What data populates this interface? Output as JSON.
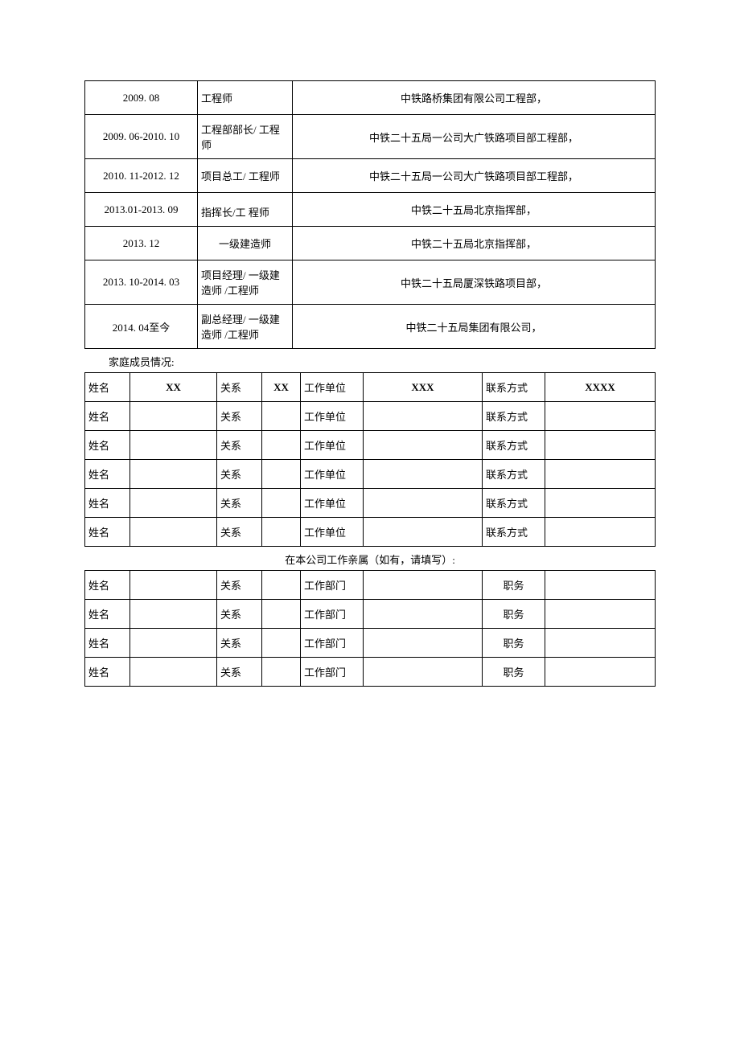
{
  "work_history": [
    {
      "date": "2009. 08",
      "role": "工程师",
      "place": "中铁路桥集团有限公司工程部，"
    },
    {
      "date": "2009. 06-2010. 10",
      "role": "工程部部长/ 工程师",
      "place": "中铁二十五局一公司大广铁路项目部工程部，"
    },
    {
      "date": "2010. 11-2012. 12",
      "role": "项目总工/ 工程师",
      "place": "中铁二十五局一公司大广铁路项目部工程部，"
    },
    {
      "date": "2013.01-2013. 09",
      "role": "指挥长/工 程师",
      "place": "中铁二十五局北京指挥部，"
    },
    {
      "date": "2013. 12",
      "role": "一级建造师",
      "place": "中铁二十五局北京指挥部，"
    },
    {
      "date": "2013. 10-2014. 03",
      "role": "项目经理/ 一级建造师 /工程师",
      "place": "中铁二十五局厦深铁路项目部，"
    },
    {
      "date": "2014. 04至今",
      "role": "副总经理/ 一级建造师 /工程师",
      "place": "中铁二十五局集团有限公司，"
    }
  ],
  "family_section_label": "家庭成员情况:",
  "family_labels": {
    "name": "姓名",
    "relation": "关系",
    "work_unit": "工作单位",
    "contact": "联系方式"
  },
  "family_rows": [
    {
      "name": "XX",
      "relation": "XX",
      "work_unit": "XXX",
      "contact": "XXXX"
    },
    {
      "name": "",
      "relation": "",
      "work_unit": "",
      "contact": ""
    },
    {
      "name": "",
      "relation": "",
      "work_unit": "",
      "contact": ""
    },
    {
      "name": "",
      "relation": "",
      "work_unit": "",
      "contact": ""
    },
    {
      "name": "",
      "relation": "",
      "work_unit": "",
      "contact": ""
    },
    {
      "name": "",
      "relation": "",
      "work_unit": "",
      "contact": ""
    }
  ],
  "relatives_section_label": "在本公司工作亲属（如有，请填写）:",
  "relatives_labels": {
    "name": "姓名",
    "relation": "关系",
    "dept": "工作部门",
    "position": "职务"
  },
  "relatives_rows": [
    {
      "name": "",
      "relation": "",
      "dept": "",
      "position": ""
    },
    {
      "name": "",
      "relation": "",
      "dept": "",
      "position": ""
    },
    {
      "name": "",
      "relation": "",
      "dept": "",
      "position": ""
    },
    {
      "name": "",
      "relation": "",
      "dept": "",
      "position": ""
    }
  ]
}
